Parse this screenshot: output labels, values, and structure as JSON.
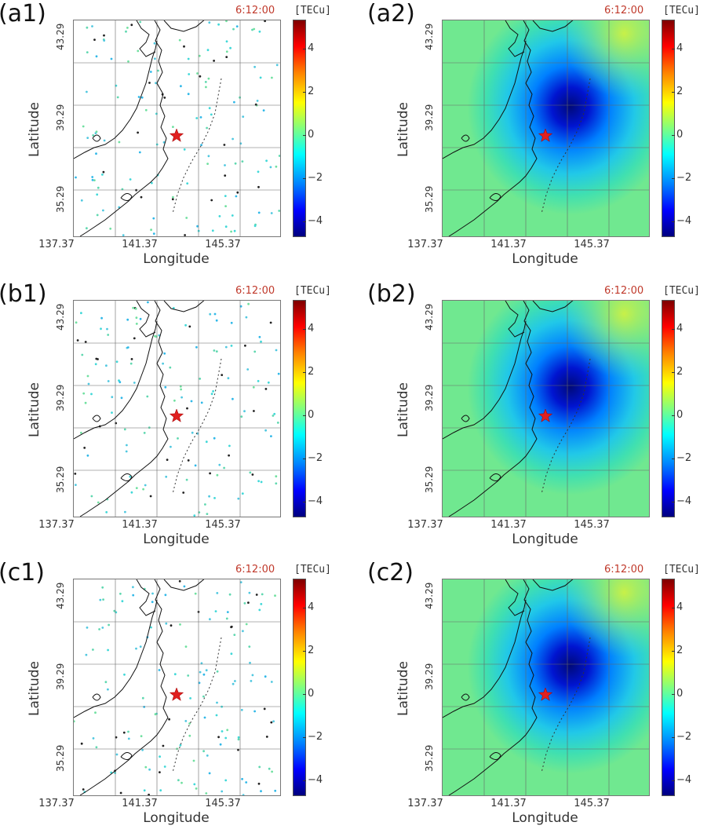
{
  "panels": [
    {
      "label": "(a1)",
      "kind": "obs"
    },
    {
      "label": "(a2)",
      "kind": "field"
    },
    {
      "label": "(b1)",
      "kind": "obs"
    },
    {
      "label": "(b2)",
      "kind": "field"
    },
    {
      "label": "(c1)",
      "kind": "obs"
    },
    {
      "label": "(c2)",
      "kind": "field"
    }
  ],
  "time": "6:12:00",
  "colorbar": {
    "unit": "[TECu]",
    "ticks": [
      "4",
      "2",
      "0",
      "−2",
      "−4"
    ],
    "range": [
      -5,
      5
    ],
    "colors": [
      "#7f0000",
      "#ff0000",
      "#ff8000",
      "#ffff00",
      "#80ff80",
      "#00ffff",
      "#0080ff",
      "#0000ff",
      "#00007f"
    ]
  },
  "axes": {
    "xlabel": "Longitude",
    "ylabel": "Latitude",
    "xticks": [
      "137.37",
      "141.37",
      "145.37"
    ],
    "yticks": [
      "43.29",
      "39.29",
      "35.29"
    ]
  },
  "epicenter_marker": "red-star-icon"
}
